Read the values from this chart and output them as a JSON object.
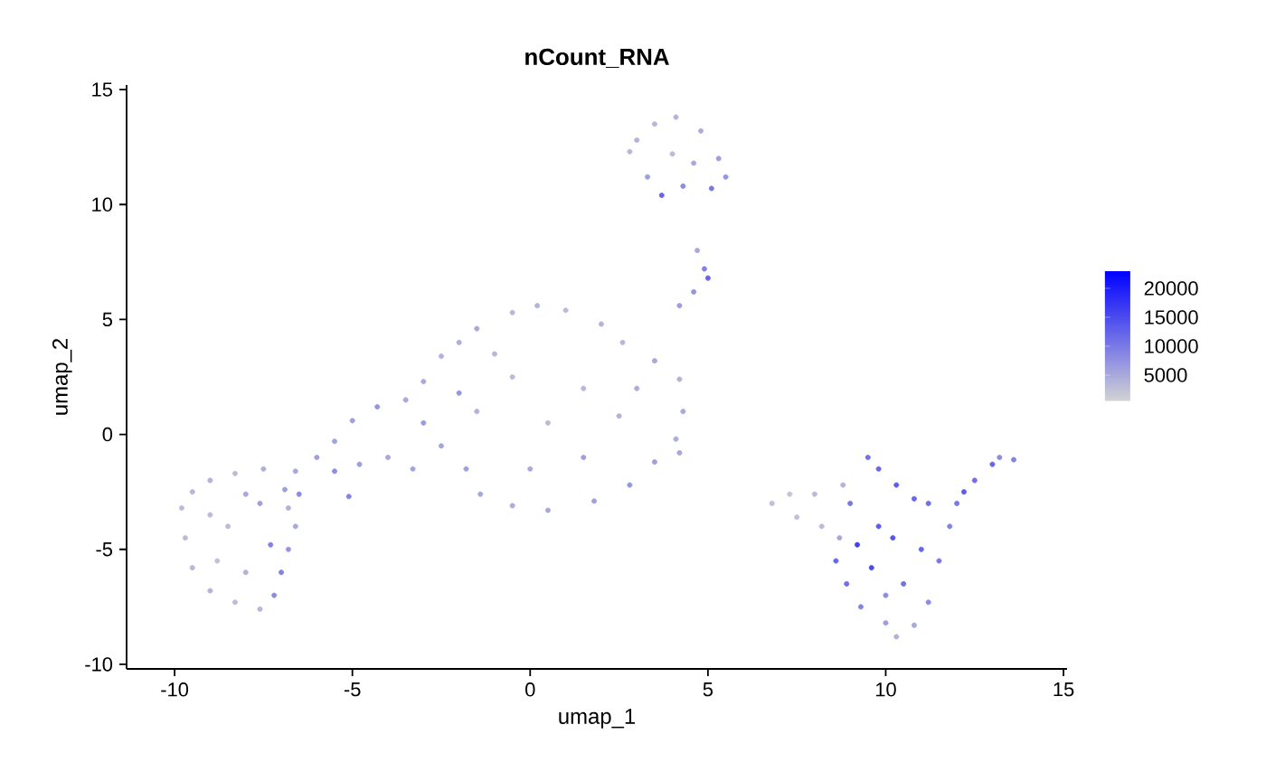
{
  "chart_data": {
    "type": "scatter",
    "title": "nCount_RNA",
    "xlabel": "umap_1",
    "ylabel": "umap_2",
    "xlim": [
      -11.35,
      15.1
    ],
    "ylim": [
      -10.2,
      15.2
    ],
    "xticks": [
      -10,
      -5,
      0,
      5,
      10,
      15
    ],
    "yticks": [
      -10,
      -5,
      0,
      5,
      10,
      15
    ],
    "clim": [
      500,
      23000
    ],
    "cticks": [
      5000,
      10000,
      15000,
      20000
    ],
    "marker": "circle",
    "grid": false,
    "x": [
      -9.8,
      -9.5,
      -9.0,
      -8.3,
      -7.5,
      -9.7,
      -9.5,
      -9.0,
      -8.3,
      -7.6,
      -7.2,
      -7.0,
      -6.8,
      -6.6,
      -6.8,
      -8.5,
      -8.8,
      -8.0,
      -7.6,
      -9.0,
      -8.0,
      -7.3,
      -6.6,
      -6.0,
      -5.5,
      -5.0,
      -4.3,
      -3.5,
      -5.5,
      -4.8,
      -4.0,
      -3.3,
      -6.5,
      -6.9,
      -5.1,
      -3.0,
      -2.5,
      -2.0,
      -1.5,
      -0.5,
      0.2,
      1.0,
      2.0,
      2.6,
      3.5,
      4.2,
      4.3,
      4.1,
      3.5,
      2.8,
      1.8,
      0.5,
      -0.5,
      -1.4,
      -1.8,
      -2.5,
      -3.0,
      -1.5,
      -0.5,
      0.5,
      1.5,
      2.5,
      0.0,
      1.5,
      -1.0,
      3.0,
      -2.0,
      4.2,
      2.8,
      3.0,
      3.5,
      4.1,
      4.8,
      5.3,
      5.5,
      5.1,
      4.3,
      3.7,
      3.3,
      4.0,
      4.6,
      4.7,
      4.9,
      5.0,
      4.6,
      4.2,
      6.8,
      7.3,
      8.0,
      8.8,
      7.5,
      8.2,
      8.7,
      9.5,
      9.8,
      10.3,
      10.8,
      11.2,
      9.0,
      8.6,
      8.9,
      9.3,
      10.0,
      10.3,
      10.8,
      11.2,
      11.5,
      11.8,
      10.2,
      9.6,
      10.5,
      9.8,
      11.0,
      9.2,
      10.0,
      12.0,
      12.5,
      13.0,
      13.6,
      13.2,
      12.2
    ],
    "values": [
      -3.2,
      -2.5,
      -2.0,
      -1.7,
      -1.5,
      -4.5,
      -5.8,
      -6.8,
      -7.3,
      -7.6,
      -7.0,
      -6.0,
      -5.0,
      -4.0,
      -3.2,
      -4.0,
      -5.5,
      -6.0,
      -3.0,
      -3.5,
      -2.6,
      -4.8,
      -1.6,
      -1.0,
      -0.3,
      0.6,
      1.2,
      1.5,
      -1.6,
      -1.3,
      -1.0,
      -1.5,
      -2.6,
      -2.4,
      -2.7,
      2.3,
      3.4,
      4.0,
      4.6,
      5.3,
      5.6,
      5.4,
      4.8,
      4.0,
      3.2,
      2.4,
      1.0,
      -0.2,
      -1.2,
      -2.2,
      -2.9,
      -3.3,
      -3.1,
      -2.6,
      -1.5,
      -0.5,
      0.5,
      1.0,
      2.5,
      0.5,
      2.0,
      0.8,
      -1.5,
      -1.0,
      3.5,
      2.0,
      1.8,
      -0.8,
      12.3,
      12.8,
      13.5,
      13.8,
      13.2,
      12.0,
      11.2,
      10.7,
      10.8,
      10.4,
      11.2,
      12.2,
      11.8,
      8.0,
      7.2,
      6.8,
      6.2,
      5.6,
      -3.0,
      -2.6,
      -2.6,
      -2.2,
      -3.6,
      -4.0,
      -4.5,
      -1.0,
      -1.5,
      -2.2,
      -2.8,
      -3.0,
      -3.0,
      -5.5,
      -6.5,
      -7.5,
      -8.2,
      -8.8,
      -8.3,
      -7.3,
      -5.5,
      -4.0,
      -4.5,
      -5.8,
      -6.5,
      -4.0,
      -5.0,
      -4.8,
      -7.0,
      -3.0,
      -2.0,
      -1.3,
      -1.1,
      -1.0,
      -2.5
    ],
    "cvalues": [
      3000,
      3500,
      4000,
      3000,
      4500,
      3000,
      3500,
      4000,
      3000,
      3500,
      8000,
      9000,
      7000,
      5000,
      4000,
      3000,
      2500,
      4000,
      6000,
      3000,
      5000,
      9000,
      5000,
      6000,
      5500,
      6000,
      7000,
      5000,
      8000,
      6000,
      5000,
      5500,
      8000,
      6000,
      9000,
      5000,
      4000,
      4500,
      5000,
      3500,
      4000,
      3000,
      4000,
      3500,
      5000,
      4000,
      5000,
      4500,
      6000,
      7000,
      6000,
      5000,
      4500,
      5000,
      6000,
      5500,
      6500,
      4000,
      3000,
      3000,
      3500,
      4000,
      5000,
      6000,
      3500,
      4500,
      7000,
      5000,
      3500,
      4000,
      3500,
      4000,
      4500,
      6000,
      7000,
      10000,
      8000,
      12000,
      6000,
      3000,
      5000,
      5000,
      9000,
      12000,
      7000,
      6000,
      2500,
      2000,
      3000,
      4000,
      2500,
      3000,
      5000,
      11000,
      12000,
      13000,
      12000,
      11000,
      10000,
      12000,
      11000,
      9000,
      6000,
      4000,
      5000,
      8000,
      10000,
      9000,
      14000,
      15000,
      11000,
      13000,
      12000,
      16000,
      8000,
      10000,
      11000,
      12000,
      9000,
      8000,
      13000
    ]
  }
}
